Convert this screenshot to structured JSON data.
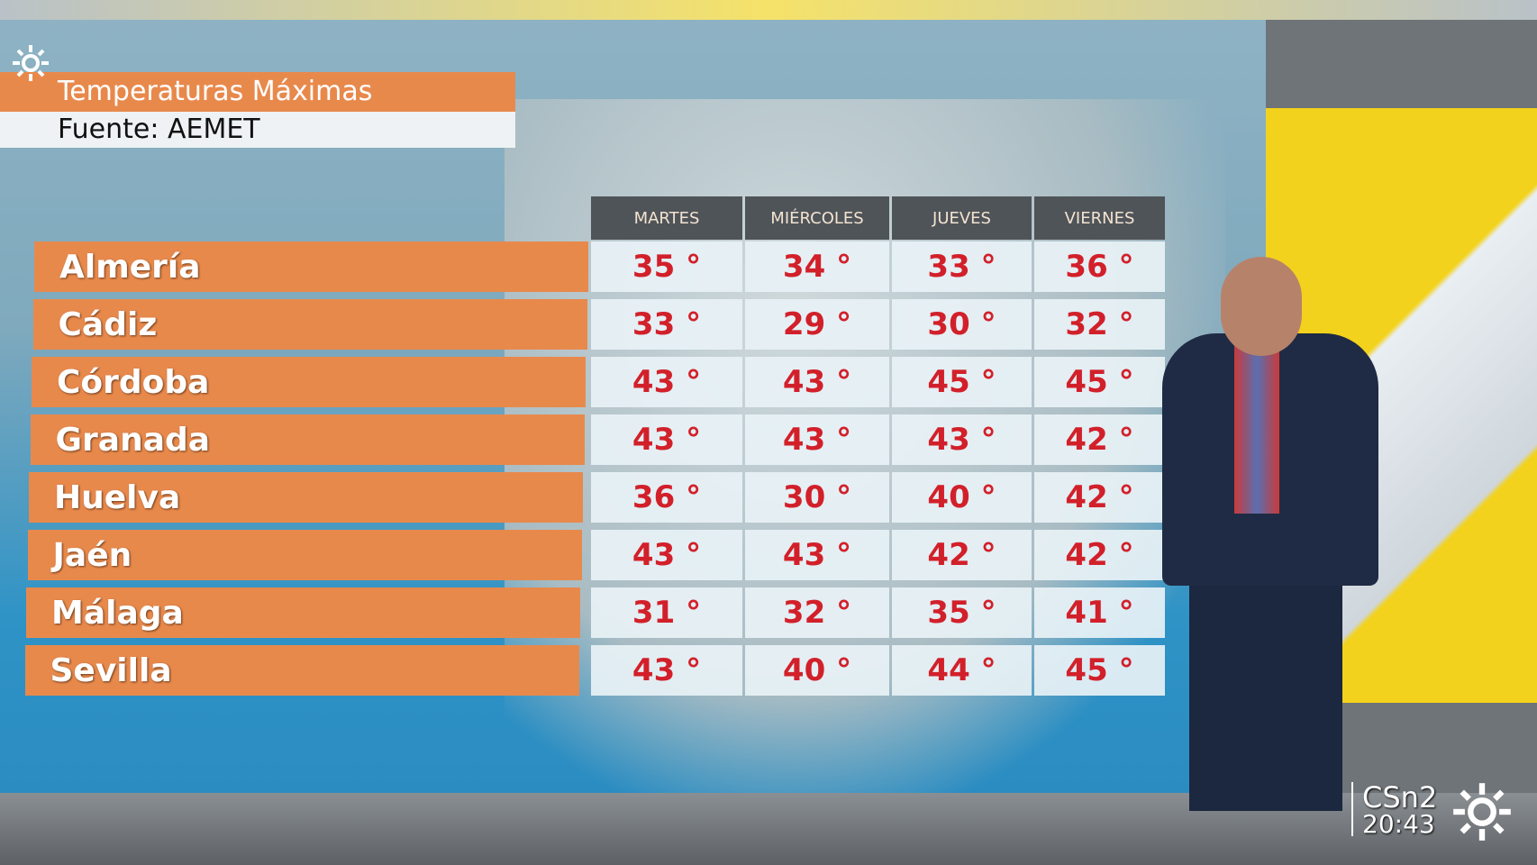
{
  "header": {
    "title": "Temperaturas Máximas",
    "source": "Fuente: AEMET"
  },
  "table": {
    "columns": [
      "MARTES",
      "MIÉRCOLES",
      "JUEVES",
      "VIERNES"
    ],
    "rows": [
      {
        "city": "Almería",
        "cells": [
          "35 °",
          "34 °",
          "33 °",
          "36 °"
        ]
      },
      {
        "city": "Cádiz",
        "cells": [
          "33 °",
          "29 °",
          "30 °",
          "32 °"
        ]
      },
      {
        "city": "Córdoba",
        "cells": [
          "43 °",
          "43 °",
          "45 °",
          "45 °"
        ]
      },
      {
        "city": "Granada",
        "cells": [
          "43 °",
          "43 °",
          "43 °",
          "42 °"
        ]
      },
      {
        "city": "Huelva",
        "cells": [
          "36 °",
          "30 °",
          "40 °",
          "42 °"
        ]
      },
      {
        "city": "Jaén",
        "cells": [
          "43 °",
          "43 °",
          "42 °",
          "42 °"
        ]
      },
      {
        "city": "Málaga",
        "cells": [
          "31 °",
          "32 °",
          "35 °",
          "41 °"
        ]
      },
      {
        "city": "Sevilla",
        "cells": [
          "43 °",
          "40 °",
          "44 °",
          "45 °"
        ]
      }
    ]
  },
  "overlay": {
    "channel": "CSn2",
    "time": "20:43"
  }
}
